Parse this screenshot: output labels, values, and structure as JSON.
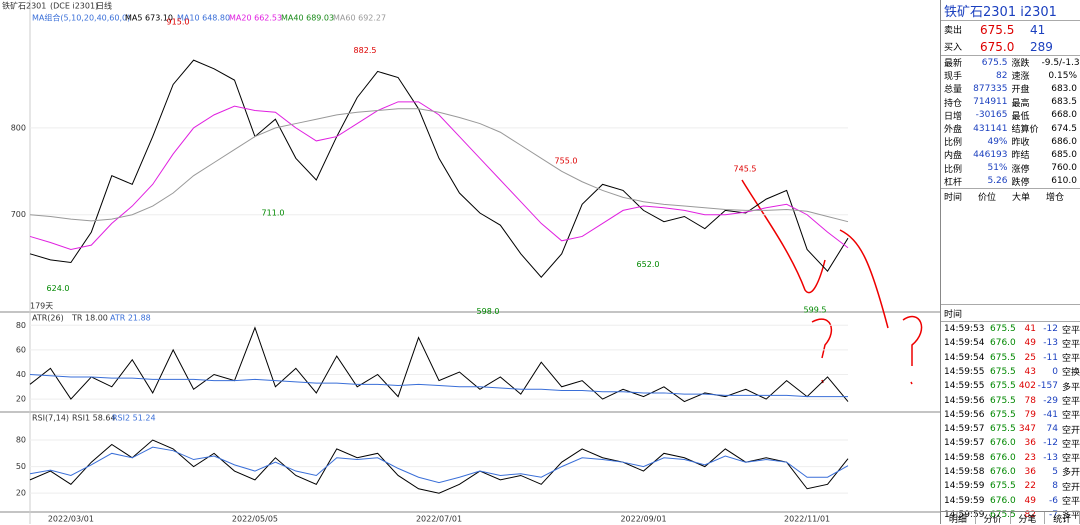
{
  "chart_data": {
    "type": "line",
    "header": {
      "symbol": "铁矿石2301",
      "exchange": "(DCE i2301)",
      "period": "日线",
      "indicator": "MA组合(5,10,20,40,60,0)"
    },
    "ma": [
      {
        "label": "MA5 673.10",
        "color": "#000000",
        "values": [
          655,
          648,
          645,
          680,
          745,
          735,
          790,
          850,
          878,
          868,
          855,
          790,
          810,
          765,
          740,
          790,
          835,
          865,
          858,
          822,
          765,
          725,
          702,
          688,
          655,
          628,
          655,
          712,
          735,
          728,
          705,
          692,
          698,
          684,
          705,
          702,
          718,
          728,
          660,
          635,
          673
        ]
      },
      {
        "label": "MA10 648.80",
        "color": "#3a6fd8"
      },
      {
        "label": "MA20 662.53",
        "color": "#e020e0",
        "values": [
          675,
          668,
          660,
          665,
          690,
          710,
          735,
          770,
          800,
          815,
          825,
          820,
          818,
          800,
          785,
          790,
          805,
          820,
          830,
          830,
          815,
          790,
          765,
          740,
          715,
          690,
          670,
          675,
          690,
          705,
          710,
          708,
          705,
          700,
          700,
          703,
          708,
          712,
          700,
          680,
          662
        ]
      },
      {
        "label": "MA40 689.03",
        "color": "#1a8a1a"
      },
      {
        "label": "MA60 692.27",
        "color": "#999999",
        "values": [
          700,
          698,
          695,
          693,
          695,
          700,
          710,
          725,
          745,
          760,
          775,
          790,
          800,
          805,
          810,
          815,
          818,
          820,
          822,
          822,
          818,
          812,
          805,
          795,
          780,
          765,
          750,
          738,
          728,
          720,
          715,
          712,
          710,
          708,
          706,
          705,
          705,
          706,
          704,
          698,
          692
        ]
      }
    ],
    "categories": [
      null,
      null,
      "2022/03/01",
      null,
      null,
      null,
      null,
      null,
      null,
      null,
      null,
      "2022/05/05",
      null,
      null,
      null,
      null,
      null,
      null,
      null,
      null,
      "2022/07/01",
      null,
      null,
      null,
      null,
      null,
      null,
      null,
      null,
      null,
      "2022/09/01",
      null,
      null,
      null,
      null,
      null,
      null,
      null,
      "2022/11/01",
      null,
      null
    ],
    "ylim": [
      588,
      930
    ],
    "yticks": [
      700,
      800
    ],
    "annotations": [
      {
        "value": 915,
        "label": "915.0"
      },
      {
        "value": 711,
        "label": "711.0"
      },
      {
        "value": 882.5,
        "label": "882.5"
      },
      {
        "value": 624,
        "label": "624.0"
      },
      {
        "value": 598,
        "label": "598.0"
      },
      {
        "value": 755,
        "label": "755.0"
      },
      {
        "value": 652,
        "label": "652.0"
      },
      {
        "value": 745.5,
        "label": "745.5"
      },
      {
        "value": 599.5,
        "label": "599.5"
      }
    ],
    "days_label": "179天",
    "atr": {
      "title": "ATR(26)",
      "tr_label": "TR 18.00",
      "atr_label": "ATR 21.88",
      "ylim": [
        9.5,
        90
      ],
      "yticks": [
        20,
        40,
        60,
        80
      ],
      "tr": [
        32,
        45,
        20,
        38,
        30,
        52,
        25,
        60,
        28,
        40,
        35,
        78,
        30,
        45,
        25,
        55,
        30,
        40,
        22,
        70,
        35,
        42,
        28,
        38,
        24,
        50,
        30,
        35,
        20,
        28,
        22,
        30,
        18,
        25,
        22,
        28,
        20,
        35,
        22,
        38,
        18
      ],
      "atr": [
        40,
        39,
        38,
        38,
        37,
        37,
        36,
        36,
        36,
        35,
        35,
        36,
        35,
        34,
        33,
        33,
        32,
        32,
        31,
        32,
        31,
        30,
        30,
        29,
        28,
        28,
        27,
        27,
        26,
        26,
        25,
        25,
        24,
        24,
        23,
        23,
        23,
        23,
        22,
        22,
        22
      ]
    },
    "rsi": {
      "title": "RSI(7,14)",
      "rsi1_label": "RSI1 58.64",
      "rsi2_label": "RSI2 51.24",
      "ylim": [
        1,
        97
      ],
      "yticks": [
        20,
        50,
        80
      ],
      "rsi1": [
        35,
        45,
        30,
        55,
        75,
        60,
        80,
        70,
        50,
        65,
        45,
        35,
        60,
        40,
        30,
        70,
        60,
        65,
        40,
        25,
        20,
        30,
        45,
        35,
        40,
        30,
        55,
        70,
        60,
        55,
        45,
        65,
        60,
        50,
        70,
        55,
        60,
        55,
        25,
        30,
        59
      ],
      "rsi2": [
        42,
        46,
        40,
        52,
        65,
        60,
        72,
        68,
        58,
        62,
        52,
        45,
        55,
        45,
        40,
        60,
        58,
        60,
        48,
        38,
        32,
        38,
        45,
        40,
        42,
        38,
        50,
        60,
        58,
        55,
        50,
        60,
        58,
        52,
        62,
        55,
        58,
        55,
        38,
        38,
        51
      ]
    }
  },
  "panel": {
    "title": "铁矿石2301  i2301",
    "quotes": [
      [
        "卖出",
        "675.5",
        "41"
      ],
      [
        "买入",
        "675.0",
        "289"
      ]
    ],
    "stats": [
      [
        "最新",
        "675.5",
        "涨跌",
        "-9.5/-1.39%"
      ],
      [
        "现手",
        "82",
        "速涨",
        "0.15%"
      ],
      [
        "总量",
        "877335",
        "开盘",
        "683.0"
      ],
      [
        "持仓",
        "714911",
        "最高",
        "683.5"
      ],
      [
        "日增",
        "-30165",
        "最低",
        "668.0"
      ],
      [
        "外盘",
        "431141",
        "结算价",
        "674.5"
      ],
      [
        "比例",
        "49%",
        "昨收",
        "686.0"
      ],
      [
        "内盘",
        "446193",
        "昨结",
        "685.0"
      ],
      [
        "比例",
        "51%",
        "涨停",
        "760.0"
      ],
      [
        "杠杆",
        "5.26",
        "跌停",
        "610.0"
      ]
    ],
    "big_header": [
      "时间",
      "价位",
      "大单",
      "增仓"
    ],
    "trades_header": "时间",
    "trades": [
      [
        "14:59:53",
        "675.5",
        "41",
        "-12",
        "空平"
      ],
      [
        "14:59:54",
        "676.0",
        "49",
        "-13",
        "空平"
      ],
      [
        "14:59:54",
        "675.5",
        "25",
        "-11",
        "空平"
      ],
      [
        "14:59:55",
        "675.5",
        "43",
        "0",
        "空换"
      ],
      [
        "14:59:55",
        "675.5",
        "402",
        "-157",
        "多平"
      ],
      [
        "14:59:56",
        "675.5",
        "78",
        "-29",
        "空平"
      ],
      [
        "14:59:56",
        "675.5",
        "79",
        "-41",
        "空平"
      ],
      [
        "14:59:57",
        "675.5",
        "347",
        "74",
        "空开"
      ],
      [
        "14:59:57",
        "676.0",
        "36",
        "-12",
        "空平"
      ],
      [
        "14:59:58",
        "676.0",
        "23",
        "-13",
        "空平"
      ],
      [
        "14:59:58",
        "676.0",
        "36",
        "5",
        "多开"
      ],
      [
        "14:59:59",
        "675.5",
        "22",
        "8",
        "空开"
      ],
      [
        "14:59:59",
        "676.0",
        "49",
        "-6",
        "空平"
      ],
      [
        "14:59:59",
        "675.5",
        "82",
        "-7",
        "多平"
      ]
    ],
    "tabs": [
      "明细",
      "分价",
      "分笔",
      "统计"
    ]
  }
}
